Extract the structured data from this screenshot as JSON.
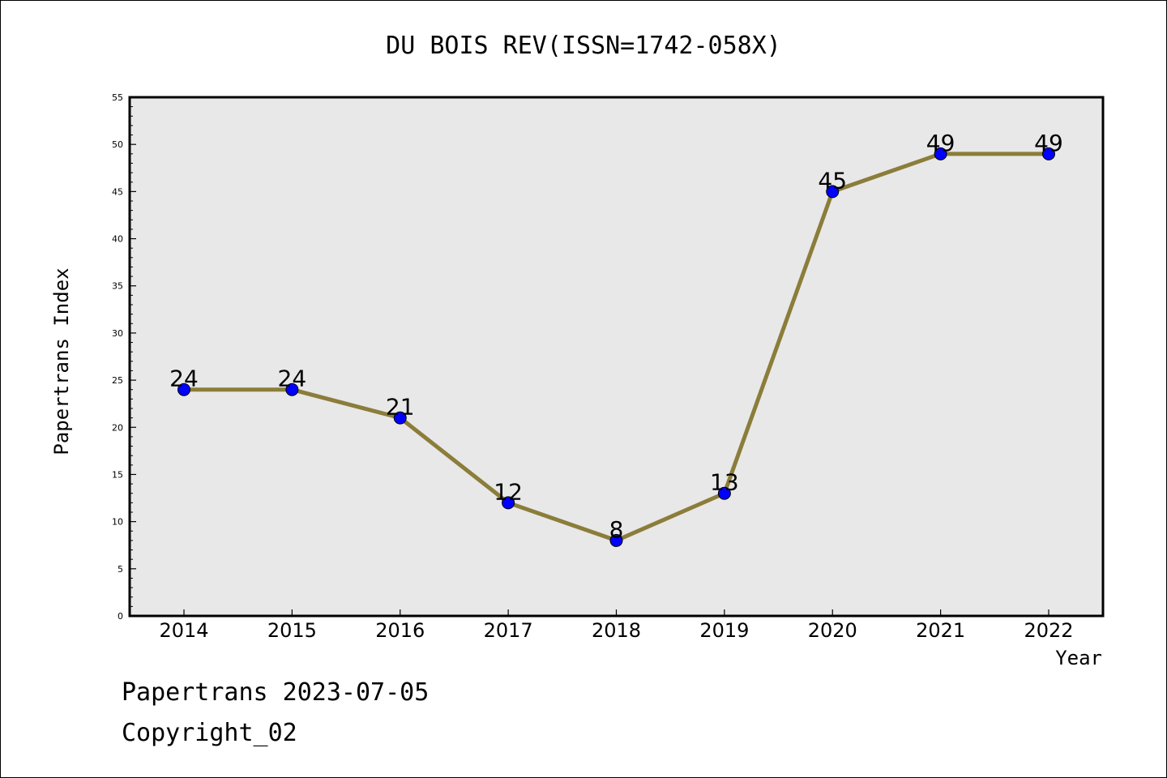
{
  "chart_data": {
    "type": "line",
    "title": "DU BOIS REV(ISSN=1742-058X)",
    "xlabel": "Year",
    "ylabel": "Papertrans Index",
    "categories": [
      "2014",
      "2015",
      "2016",
      "2017",
      "2018",
      "2019",
      "2020",
      "2021",
      "2022"
    ],
    "series": [
      {
        "values": [
          24,
          24,
          21,
          12,
          8,
          13,
          45,
          49,
          49
        ]
      }
    ],
    "ylim": [
      0,
      55
    ],
    "y_ticks": [
      "0",
      "5",
      "10",
      "15",
      "20",
      "25",
      "30",
      "35",
      "40",
      "45",
      "50",
      "55"
    ],
    "line_color": "#8B7D3A",
    "marker_color": "#0000FF",
    "plot_background": "#E8E8E8",
    "grid": false,
    "legend": "none"
  },
  "footer": {
    "line1": "Papertrans 2023-07-05",
    "line2": "Copyright_02"
  }
}
